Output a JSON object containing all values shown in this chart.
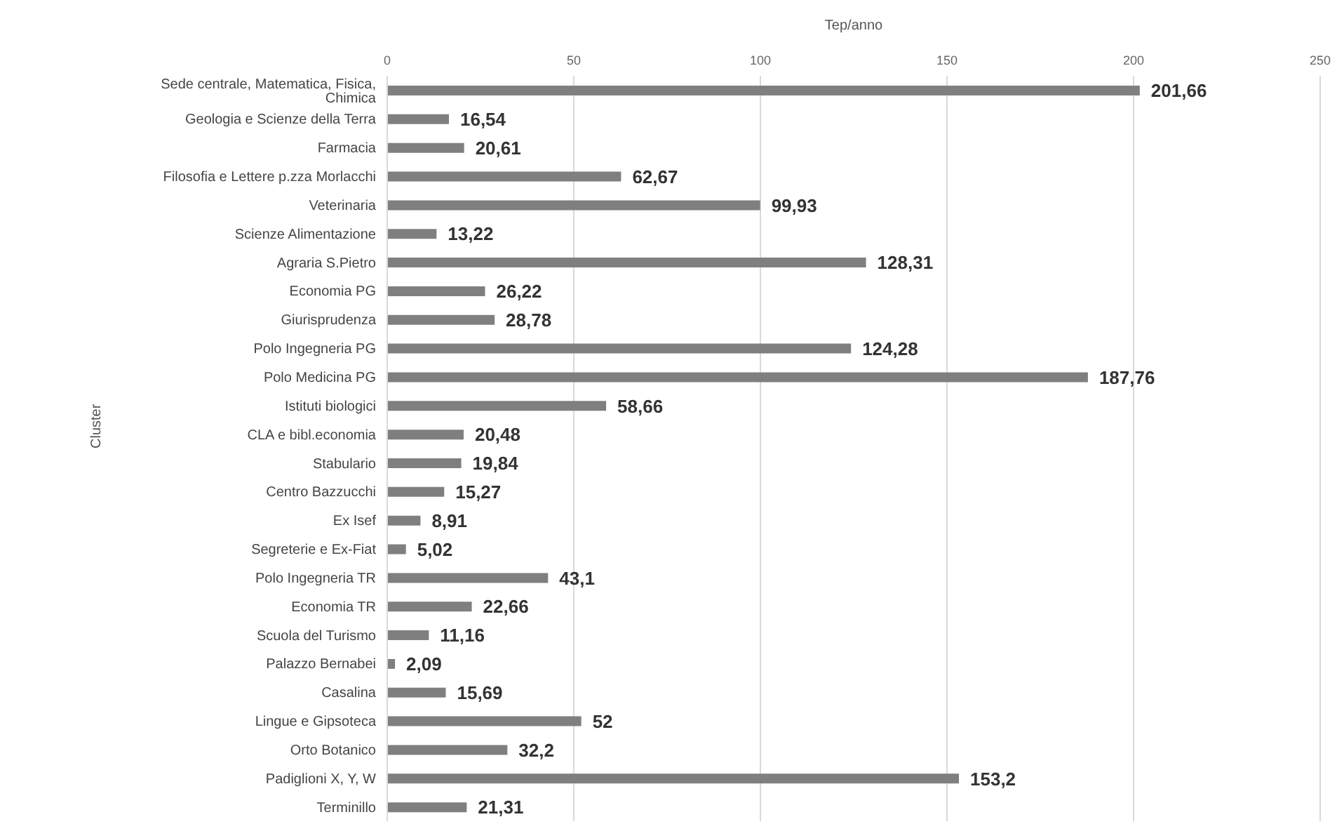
{
  "chart_data": {
    "type": "bar",
    "orientation": "horizontal",
    "xlabel": "Tep/anno",
    "ylabel": "Cluster",
    "categories": [
      "Sede centrale, Matematica, Fisica, Chimica",
      "Geologia e Scienze della Terra",
      "Farmacia",
      "Filosofia e Lettere p.zza Morlacchi",
      "Veterinaria",
      "Scienze Alimentazione",
      "Agraria S.Pietro",
      "Economia PG",
      "Giurisprudenza",
      "Polo Ingegneria PG",
      "Polo Medicina PG",
      "Istituti biologici",
      "CLA e bibl.economia",
      "Stabulario",
      "Centro Bazzucchi",
      "Ex Isef",
      "Segreterie e Ex-Fiat",
      "Polo Ingegneria TR",
      "Economia TR",
      "Scuola del Turismo",
      "Palazzo Bernabei",
      "Casalina",
      "Lingue e Gipsoteca",
      "Orto Botanico",
      "Padiglioni X, Y, W",
      "Terminillo"
    ],
    "values": [
      201.66,
      16.54,
      20.61,
      62.67,
      99.93,
      13.22,
      128.31,
      26.22,
      28.78,
      124.28,
      187.76,
      58.66,
      20.48,
      19.84,
      15.27,
      8.91,
      5.02,
      43.1,
      22.66,
      11.16,
      2.09,
      15.69,
      52,
      32.2,
      153.2,
      21.31
    ],
    "value_labels": [
      "201,66",
      "16,54",
      "20,61",
      "62,67",
      "99,93",
      "13,22",
      "128,31",
      "26,22",
      "28,78",
      "124,28",
      "187,76",
      "58,66",
      "20,48",
      "19,84",
      "15,27",
      "8,91",
      "5,02",
      "43,1",
      "22,66",
      "11,16",
      "2,09",
      "15,69",
      "52",
      "32,2",
      "153,2",
      "21,31"
    ],
    "color": "#7f7f7f",
    "xlim": [
      0,
      250
    ],
    "xticks": [
      0,
      50,
      100,
      150,
      200,
      250
    ],
    "grid": "x"
  }
}
